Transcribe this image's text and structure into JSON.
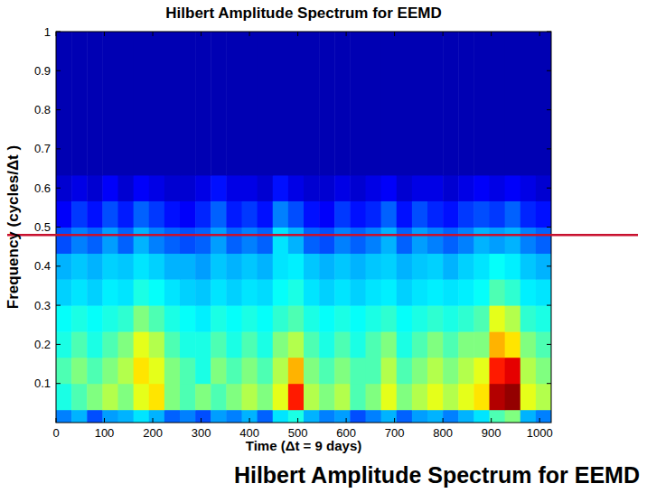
{
  "chart_data": {
    "type": "heatmap",
    "title": "Hilbert Amplitude Spectrum for EEMD",
    "x_label": "Time (Δt = 9 days)",
    "y_label": "Frequency (cycles/Δt )",
    "annotations": [
      "Hilbert Amplitude Spectrum for EEMD"
    ],
    "hline": {
      "y": 0.48,
      "color": "#c8102e"
    },
    "xlim": [
      0,
      1024
    ],
    "ylim": [
      0,
      1
    ],
    "xticks": [
      0,
      100,
      200,
      300,
      400,
      500,
      600,
      700,
      800,
      900,
      1000
    ],
    "yticks": [
      0.1,
      0.2,
      0.3,
      0.4,
      0.5,
      0.6,
      0.7,
      0.8,
      0.9,
      1
    ],
    "zlim": [
      0,
      1
    ],
    "x_edges": [
      0,
      32,
      64,
      96,
      128,
      160,
      192,
      224,
      256,
      288,
      320,
      352,
      384,
      416,
      448,
      480,
      512,
      544,
      576,
      608,
      640,
      672,
      704,
      736,
      768,
      800,
      832,
      864,
      896,
      928,
      960,
      992,
      1024
    ],
    "y_edges": [
      0,
      0.033,
      0.1,
      0.167,
      0.233,
      0.3,
      0.367,
      0.433,
      0.5,
      0.567,
      0.633,
      1
    ],
    "cells": [
      [
        0.25,
        0.3,
        0.2,
        0.28,
        0.3,
        0.35,
        0.3,
        0.22,
        0.25,
        0.2,
        0.28,
        0.25,
        0.3,
        0.22,
        0.35,
        0.4,
        0.3,
        0.25,
        0.28,
        0.2,
        0.25,
        0.3,
        0.22,
        0.28,
        0.3,
        0.25,
        0.3,
        0.35,
        0.45,
        0.5,
        0.3,
        0.25
      ],
      [
        0.4,
        0.45,
        0.5,
        0.55,
        0.5,
        0.6,
        0.65,
        0.5,
        0.45,
        0.5,
        0.45,
        0.5,
        0.55,
        0.5,
        0.6,
        0.85,
        0.55,
        0.5,
        0.55,
        0.45,
        0.5,
        0.6,
        0.5,
        0.55,
        0.6,
        0.55,
        0.6,
        0.65,
        0.95,
        0.98,
        0.6,
        0.55
      ],
      [
        0.45,
        0.5,
        0.45,
        0.5,
        0.55,
        0.65,
        0.6,
        0.5,
        0.45,
        0.4,
        0.5,
        0.45,
        0.5,
        0.45,
        0.55,
        0.7,
        0.5,
        0.45,
        0.5,
        0.45,
        0.45,
        0.55,
        0.45,
        0.5,
        0.55,
        0.5,
        0.55,
        0.6,
        0.85,
        0.9,
        0.55,
        0.5
      ],
      [
        0.4,
        0.45,
        0.4,
        0.45,
        0.5,
        0.6,
        0.55,
        0.45,
        0.4,
        0.4,
        0.45,
        0.4,
        0.45,
        0.4,
        0.5,
        0.55,
        0.45,
        0.4,
        0.45,
        0.4,
        0.45,
        0.5,
        0.4,
        0.45,
        0.5,
        0.45,
        0.5,
        0.5,
        0.7,
        0.65,
        0.5,
        0.45
      ],
      [
        0.38,
        0.4,
        0.38,
        0.4,
        0.42,
        0.5,
        0.45,
        0.4,
        0.38,
        0.36,
        0.4,
        0.38,
        0.4,
        0.38,
        0.42,
        0.45,
        0.4,
        0.38,
        0.4,
        0.38,
        0.4,
        0.42,
        0.38,
        0.4,
        0.42,
        0.4,
        0.42,
        0.45,
        0.6,
        0.55,
        0.42,
        0.4
      ],
      [
        0.33,
        0.35,
        0.33,
        0.36,
        0.35,
        0.4,
        0.38,
        0.35,
        0.33,
        0.32,
        0.35,
        0.33,
        0.35,
        0.34,
        0.38,
        0.4,
        0.35,
        0.33,
        0.35,
        0.33,
        0.35,
        0.36,
        0.33,
        0.35,
        0.36,
        0.35,
        0.36,
        0.38,
        0.45,
        0.42,
        0.36,
        0.35
      ],
      [
        0.3,
        0.32,
        0.3,
        0.33,
        0.32,
        0.35,
        0.33,
        0.3,
        0.3,
        0.28,
        0.32,
        0.3,
        0.32,
        0.3,
        0.35,
        0.36,
        0.32,
        0.3,
        0.32,
        0.3,
        0.32,
        0.33,
        0.3,
        0.32,
        0.33,
        0.3,
        0.33,
        0.35,
        0.38,
        0.36,
        0.32,
        0.3
      ],
      [
        0.2,
        0.25,
        0.22,
        0.28,
        0.22,
        0.3,
        0.25,
        0.22,
        0.2,
        0.22,
        0.28,
        0.22,
        0.25,
        0.22,
        0.35,
        0.3,
        0.22,
        0.2,
        0.25,
        0.22,
        0.25,
        0.3,
        0.22,
        0.28,
        0.25,
        0.22,
        0.25,
        0.3,
        0.28,
        0.3,
        0.25,
        0.22
      ],
      [
        0.12,
        0.18,
        0.14,
        0.2,
        0.15,
        0.22,
        0.18,
        0.14,
        0.12,
        0.16,
        0.22,
        0.15,
        0.18,
        0.14,
        0.25,
        0.2,
        0.14,
        0.12,
        0.18,
        0.14,
        0.16,
        0.22,
        0.14,
        0.2,
        0.16,
        0.14,
        0.18,
        0.2,
        0.18,
        0.22,
        0.16,
        0.14
      ],
      [
        0.08,
        0.1,
        0.08,
        0.12,
        0.08,
        0.12,
        0.1,
        0.08,
        0.08,
        0.1,
        0.14,
        0.1,
        0.1,
        0.08,
        0.14,
        0.1,
        0.08,
        0.08,
        0.1,
        0.08,
        0.1,
        0.12,
        0.08,
        0.1,
        0.1,
        0.08,
        0.1,
        0.12,
        0.1,
        0.12,
        0.1,
        0.08
      ],
      [
        0.05,
        0.05,
        0.05,
        0.05,
        0.05,
        0.05,
        0.05,
        0.05,
        0.05,
        0.05,
        0.05,
        0.05,
        0.05,
        0.05,
        0.05,
        0.05,
        0.05,
        0.05,
        0.05,
        0.05,
        0.05,
        0.05,
        0.05,
        0.05,
        0.05,
        0.05,
        0.05,
        0.05,
        0.05,
        0.05,
        0.05,
        0.05
      ]
    ]
  }
}
